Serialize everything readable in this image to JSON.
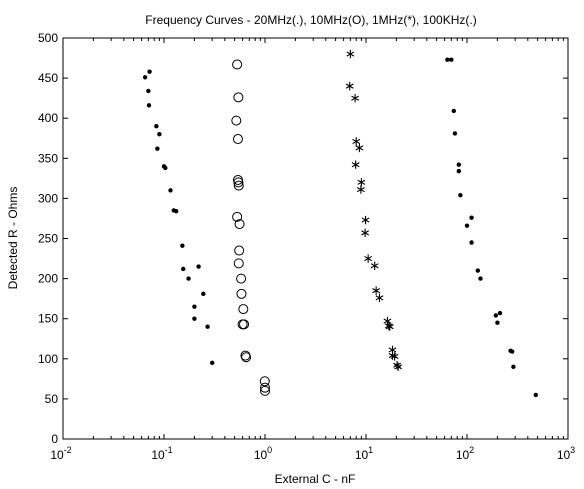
{
  "chart_data": {
    "type": "scatter",
    "title": "Frequency Curves - 20MHz(.), 10MHz(O), 1MHz(*), 100KHz(.)",
    "xlabel": "External C - nF",
    "ylabel": "Detected R - Ohms",
    "xscale": "log",
    "xlim": [
      0.01,
      1000
    ],
    "ylim": [
      0,
      500
    ],
    "x_ticks": [
      {
        "value": 0.01,
        "base": "10",
        "exp": "-2"
      },
      {
        "value": 0.1,
        "base": "10",
        "exp": "-1"
      },
      {
        "value": 1,
        "base": "10",
        "exp": "0"
      },
      {
        "value": 10,
        "base": "10",
        "exp": "1"
      },
      {
        "value": 100,
        "base": "10",
        "exp": "2"
      },
      {
        "value": 1000,
        "base": "10",
        "exp": "3"
      }
    ],
    "y_ticks": [
      "0",
      "50",
      "100",
      "150",
      "200",
      "250",
      "300",
      "350",
      "400",
      "450",
      "500"
    ],
    "grid": false,
    "series": [
      {
        "marker": "dot",
        "points": [
          [
            0.065,
            451
          ],
          [
            0.072,
            458
          ],
          [
            0.07,
            434
          ],
          [
            0.071,
            416
          ],
          [
            0.084,
            390
          ],
          [
            0.09,
            380
          ],
          [
            0.086,
            362
          ],
          [
            0.1,
            340
          ],
          [
            0.103,
            338
          ],
          [
            0.116,
            310
          ],
          [
            0.125,
            285
          ],
          [
            0.132,
            284
          ],
          [
            0.152,
            241
          ],
          [
            0.155,
            212
          ],
          [
            0.175,
            200
          ],
          [
            0.22,
            215
          ],
          [
            0.2,
            165
          ],
          [
            0.2,
            150
          ],
          [
            0.245,
            181
          ],
          [
            0.27,
            140
          ],
          [
            0.3,
            95
          ]
        ]
      },
      {
        "marker": "circle",
        "points": [
          [
            0.53,
            467
          ],
          [
            0.545,
            426
          ],
          [
            0.52,
            397
          ],
          [
            0.54,
            374
          ],
          [
            0.54,
            323
          ],
          [
            0.545,
            320
          ],
          [
            0.55,
            316
          ],
          [
            0.53,
            277
          ],
          [
            0.56,
            268
          ],
          [
            0.555,
            235
          ],
          [
            0.55,
            219
          ],
          [
            0.58,
            200
          ],
          [
            0.585,
            181
          ],
          [
            0.61,
            162
          ],
          [
            0.6,
            143
          ],
          [
            0.62,
            143
          ],
          [
            0.64,
            104
          ],
          [
            0.65,
            102
          ],
          [
            0.995,
            72
          ],
          [
            1.0,
            64
          ],
          [
            1.0,
            60
          ]
        ]
      },
      {
        "marker": "asterisk",
        "points": [
          [
            7.0,
            480
          ],
          [
            6.9,
            440
          ],
          [
            7.8,
            425
          ],
          [
            8.0,
            371
          ],
          [
            8.6,
            363
          ],
          [
            7.9,
            342
          ],
          [
            9.0,
            320
          ],
          [
            8.9,
            311
          ],
          [
            9.9,
            273
          ],
          [
            9.8,
            257
          ],
          [
            10.5,
            225
          ],
          [
            12.2,
            216
          ],
          [
            12.6,
            185
          ],
          [
            13.6,
            176
          ],
          [
            16.3,
            147
          ],
          [
            16.8,
            141
          ],
          [
            17.2,
            140
          ],
          [
            18.3,
            111
          ],
          [
            18.3,
            104
          ],
          [
            19.2,
            103
          ],
          [
            20.3,
            92
          ],
          [
            20.8,
            90
          ]
        ]
      },
      {
        "marker": "dot",
        "points": [
          [
            64,
            473
          ],
          [
            70,
            473
          ],
          [
            74,
            409
          ],
          [
            76,
            381
          ],
          [
            83,
            342
          ],
          [
            83,
            334
          ],
          [
            86,
            304
          ],
          [
            111,
            276
          ],
          [
            100,
            266
          ],
          [
            111,
            245
          ],
          [
            128,
            210
          ],
          [
            136,
            200
          ],
          [
            193,
            154
          ],
          [
            212,
            157
          ],
          [
            200,
            145
          ],
          [
            270,
            110
          ],
          [
            280,
            109
          ],
          [
            288,
            90
          ],
          [
            480,
            55
          ]
        ]
      }
    ]
  }
}
